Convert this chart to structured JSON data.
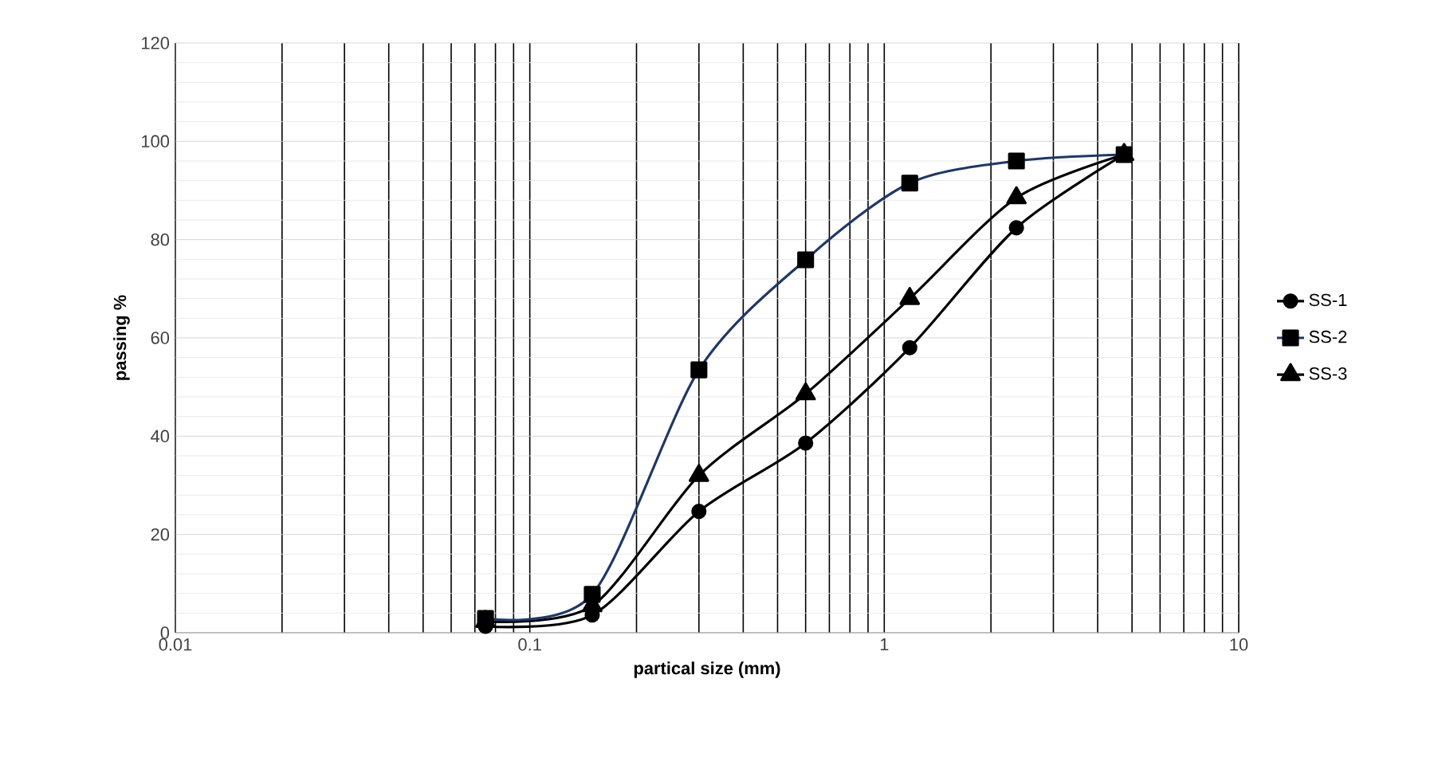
{
  "chart_data": {
    "type": "line",
    "xlabel": "partical size (mm)",
    "ylabel": "passing %",
    "log": "x",
    "xlim": [
      0.01,
      10
    ],
    "xticks": [
      0.01,
      0.1,
      1,
      10
    ],
    "ylim": [
      0,
      120
    ],
    "yticks": [
      0,
      20,
      40,
      60,
      80,
      100,
      120
    ],
    "x": [
      0.075,
      0.15,
      0.3,
      0.6,
      1.18,
      2.36,
      4.75
    ],
    "grid": true,
    "legend": "right",
    "line_style": "solid",
    "series": [
      {
        "name": "SS-1",
        "color": "#000000",
        "marker": "circle",
        "values": [
          1.3,
          3.6,
          24.7,
          38.6,
          58,
          82.4,
          97.3
        ]
      },
      {
        "name": "SS-2",
        "color": "#1f3864",
        "marker": "square",
        "values": [
          2.9,
          7.8,
          53.5,
          75.9,
          91.5,
          96,
          97.3
        ]
      },
      {
        "name": "SS-3",
        "color": "#000000",
        "marker": "triangle",
        "values": [
          2.3,
          5.5,
          32,
          48.6,
          68,
          88.5,
          97.3
        ]
      }
    ]
  }
}
